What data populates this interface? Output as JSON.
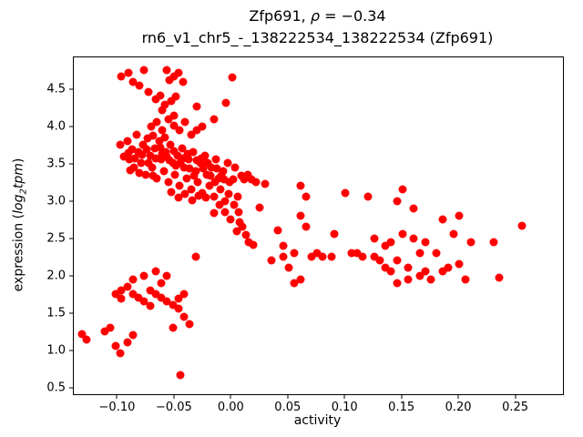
{
  "chart_data": {
    "type": "scatter",
    "title": "Zfp691, ρ = −0.34",
    "title_parts": {
      "prefix": "Zfp691, ",
      "rho": "ρ",
      "rest": " = −0.34"
    },
    "subtitle": "rn6_v1_chr5_-_138222534_138222534 (Zfp691)",
    "xlabel": "activity",
    "ylabel": "expression (log2 tpm)",
    "ylabel_parts": {
      "prefix": "expression (",
      "math_word": "log",
      "math_sub": "2",
      "math_rest": "tpm",
      "suffix": ")"
    },
    "legend": "none",
    "grid": false,
    "marker_color": "#ff0000",
    "marker_size_px": 9,
    "xlim": [
      -0.138,
      0.292
    ],
    "ylim": [
      0.42,
      4.93
    ],
    "xticks": [
      {
        "label": "−0.10",
        "value": -0.1
      },
      {
        "label": "−0.05",
        "value": -0.05
      },
      {
        "label": "0.00",
        "value": 0.0
      },
      {
        "label": "0.05",
        "value": 0.05
      },
      {
        "label": "0.10",
        "value": 0.1
      },
      {
        "label": "0.15",
        "value": 0.15
      },
      {
        "label": "0.20",
        "value": 0.2
      },
      {
        "label": "0.25",
        "value": 0.25
      }
    ],
    "yticks": [
      {
        "label": "0.5",
        "value": 0.5
      },
      {
        "label": "1.0",
        "value": 1.0
      },
      {
        "label": "1.5",
        "value": 1.5
      },
      {
        "label": "2.0",
        "value": 2.0
      },
      {
        "label": "2.5",
        "value": 2.5
      },
      {
        "label": "3.0",
        "value": 3.0
      },
      {
        "label": "3.5",
        "value": 3.5
      },
      {
        "label": "4.0",
        "value": 4.0
      },
      {
        "label": "4.5",
        "value": 4.5
      }
    ],
    "points": [
      [
        -0.096,
        4.67
      ],
      [
        -0.09,
        4.72
      ],
      [
        -0.086,
        4.6
      ],
      [
        -0.08,
        4.55
      ],
      [
        -0.076,
        4.76
      ],
      [
        -0.072,
        4.47
      ],
      [
        -0.066,
        4.37
      ],
      [
        -0.062,
        4.42
      ],
      [
        -0.058,
        4.3
      ],
      [
        -0.054,
        4.62
      ],
      [
        -0.05,
        4.67
      ],
      [
        -0.046,
        4.72
      ],
      [
        -0.056,
        4.76
      ],
      [
        -0.06,
        4.22
      ],
      [
        -0.042,
        4.6
      ],
      [
        -0.03,
        4.27
      ],
      [
        -0.004,
        4.32
      ],
      [
        0.001,
        4.66
      ],
      [
        -0.048,
        4.4
      ],
      [
        -0.052,
        4.35
      ],
      [
        -0.07,
        4.0
      ],
      [
        -0.065,
        4.06
      ],
      [
        -0.06,
        3.95
      ],
      [
        -0.055,
        4.1
      ],
      [
        -0.05,
        4.01
      ],
      [
        -0.045,
        3.96
      ],
      [
        -0.04,
        4.06
      ],
      [
        -0.035,
        3.9
      ],
      [
        -0.05,
        4.15
      ],
      [
        -0.03,
        3.95
      ],
      [
        -0.025,
        4.0
      ],
      [
        -0.015,
        4.1
      ],
      [
        -0.068,
        3.88
      ],
      [
        -0.058,
        3.86
      ],
      [
        -0.097,
        3.76
      ],
      [
        -0.094,
        3.6
      ],
      [
        -0.091,
        3.81
      ],
      [
        -0.089,
        3.56
      ],
      [
        -0.087,
        3.7
      ],
      [
        -0.085,
        3.46
      ],
      [
        -0.083,
        3.9
      ],
      [
        -0.081,
        3.66
      ],
      [
        -0.079,
        3.51
      ],
      [
        -0.077,
        3.76
      ],
      [
        -0.075,
        3.36
      ],
      [
        -0.073,
        3.85
      ],
      [
        -0.071,
        3.61
      ],
      [
        -0.069,
        3.46
      ],
      [
        -0.067,
        3.71
      ],
      [
        -0.065,
        3.31
      ],
      [
        -0.063,
        3.81
      ],
      [
        -0.061,
        3.56
      ],
      [
        -0.059,
        3.41
      ],
      [
        -0.057,
        3.66
      ],
      [
        -0.055,
        3.26
      ],
      [
        -0.053,
        3.76
      ],
      [
        -0.051,
        3.51
      ],
      [
        -0.049,
        3.36
      ],
      [
        -0.047,
        3.61
      ],
      [
        -0.045,
        3.21
      ],
      [
        -0.043,
        3.71
      ],
      [
        -0.041,
        3.46
      ],
      [
        -0.039,
        3.31
      ],
      [
        -0.037,
        3.56
      ],
      [
        -0.035,
        3.16
      ],
      [
        -0.033,
        3.66
      ],
      [
        -0.031,
        3.41
      ],
      [
        -0.029,
        3.26
      ],
      [
        -0.027,
        3.51
      ],
      [
        -0.025,
        3.11
      ],
      [
        -0.023,
        3.61
      ],
      [
        -0.021,
        3.36
      ],
      [
        -0.019,
        3.21
      ],
      [
        -0.017,
        3.46
      ],
      [
        -0.015,
        3.06
      ],
      [
        -0.013,
        3.56
      ],
      [
        -0.011,
        3.31
      ],
      [
        -0.009,
        3.16
      ],
      [
        -0.007,
        3.41
      ],
      [
        -0.005,
        3.01
      ],
      [
        -0.003,
        3.51
      ],
      [
        -0.001,
        3.26
      ],
      [
        -0.09,
        3.65
      ],
      [
        -0.084,
        3.58
      ],
      [
        -0.078,
        3.62
      ],
      [
        -0.072,
        3.52
      ],
      [
        -0.066,
        3.58
      ],
      [
        -0.06,
        3.64
      ],
      [
        -0.054,
        3.55
      ],
      [
        -0.048,
        3.48
      ],
      [
        -0.042,
        3.58
      ],
      [
        -0.036,
        3.44
      ],
      [
        -0.03,
        3.55
      ],
      [
        -0.024,
        3.44
      ],
      [
        -0.018,
        3.35
      ],
      [
        -0.012,
        3.44
      ],
      [
        -0.006,
        3.3
      ],
      [
        -0.088,
        3.42
      ],
      [
        -0.08,
        3.38
      ],
      [
        -0.074,
        3.7
      ],
      [
        -0.068,
        3.35
      ],
      [
        -0.062,
        3.72
      ],
      [
        -0.056,
        3.6
      ],
      [
        -0.05,
        3.68
      ],
      [
        -0.044,
        3.52
      ],
      [
        -0.038,
        3.64
      ],
      [
        -0.032,
        3.34
      ],
      [
        -0.026,
        3.58
      ],
      [
        -0.02,
        3.52
      ],
      [
        -0.014,
        3.26
      ],
      [
        -0.008,
        3.34
      ],
      [
        -0.002,
        3.1
      ],
      [
        -0.046,
        3.05
      ],
      [
        -0.04,
        3.1
      ],
      [
        -0.034,
        3.02
      ],
      [
        -0.028,
        3.08
      ],
      [
        -0.022,
        3.05
      ],
      [
        -0.052,
        3.12
      ],
      [
        0.002,
        3.3
      ],
      [
        0.004,
        3.46
      ],
      [
        0.006,
        3.06
      ],
      [
        0.009,
        3.34
      ],
      [
        0.012,
        3.3
      ],
      [
        0.015,
        3.36
      ],
      [
        0.018,
        3.3
      ],
      [
        0.022,
        3.26
      ],
      [
        0.003,
        2.96
      ],
      [
        0.007,
        2.86
      ],
      [
        -0.01,
        2.95
      ],
      [
        -0.005,
        2.86
      ],
      [
        0.0,
        2.76
      ],
      [
        0.005,
        2.6
      ],
      [
        0.01,
        2.66
      ],
      [
        0.013,
        2.55
      ],
      [
        0.016,
        2.46
      ],
      [
        0.02,
        2.42
      ],
      [
        0.025,
        2.92
      ],
      [
        0.03,
        3.24
      ],
      [
        0.008,
        2.72
      ],
      [
        -0.015,
        2.85
      ],
      [
        -0.131,
        1.22
      ],
      [
        -0.127,
        1.15
      ],
      [
        -0.106,
        1.31
      ],
      [
        -0.101,
        1.06
      ],
      [
        -0.097,
        0.97
      ],
      [
        -0.101,
        1.76
      ],
      [
        -0.096,
        1.81
      ],
      [
        -0.091,
        1.86
      ],
      [
        -0.086,
        1.76
      ],
      [
        -0.081,
        1.71
      ],
      [
        -0.076,
        1.66
      ],
      [
        -0.071,
        1.81
      ],
      [
        -0.066,
        1.76
      ],
      [
        -0.061,
        1.71
      ],
      [
        -0.056,
        1.66
      ],
      [
        -0.051,
        1.61
      ],
      [
        -0.061,
        1.91
      ],
      [
        -0.056,
        2.01
      ],
      [
        -0.046,
        1.56
      ],
      [
        -0.041,
        1.46
      ],
      [
        -0.036,
        1.36
      ],
      [
        -0.051,
        1.31
      ],
      [
        -0.086,
        1.21
      ],
      [
        -0.091,
        1.11
      ],
      [
        -0.044,
        0.68
      ],
      [
        -0.031,
        2.26
      ],
      [
        -0.066,
        2.06
      ],
      [
        -0.076,
        2.01
      ],
      [
        -0.086,
        1.95
      ],
      [
        -0.096,
        1.7
      ],
      [
        -0.071,
        1.6
      ],
      [
        -0.046,
        1.7
      ],
      [
        -0.041,
        1.76
      ],
      [
        -0.111,
        1.26
      ],
      [
        0.036,
        2.21
      ],
      [
        0.041,
        2.61
      ],
      [
        0.046,
        2.26
      ],
      [
        0.051,
        2.11
      ],
      [
        0.056,
        1.91
      ],
      [
        0.061,
        1.96
      ],
      [
        0.061,
        2.81
      ],
      [
        0.066,
        2.66
      ],
      [
        0.071,
        2.26
      ],
      [
        0.076,
        2.31
      ],
      [
        0.081,
        2.26
      ],
      [
        0.091,
        2.56
      ],
      [
        0.061,
        3.21
      ],
      [
        0.066,
        3.06
      ],
      [
        0.056,
        2.31
      ],
      [
        0.046,
        2.41
      ],
      [
        0.089,
        2.26
      ],
      [
        0.101,
        3.11
      ],
      [
        0.106,
        2.31
      ],
      [
        0.111,
        2.31
      ],
      [
        0.121,
        3.06
      ],
      [
        0.126,
        2.51
      ],
      [
        0.131,
        2.21
      ],
      [
        0.136,
        2.11
      ],
      [
        0.141,
        2.06
      ],
      [
        0.141,
        2.46
      ],
      [
        0.146,
        3.01
      ],
      [
        0.146,
        2.21
      ],
      [
        0.151,
        3.16
      ],
      [
        0.151,
        2.56
      ],
      [
        0.156,
        2.11
      ],
      [
        0.161,
        2.51
      ],
      [
        0.166,
        2.01
      ],
      [
        0.171,
        2.46
      ],
      [
        0.176,
        1.96
      ],
      [
        0.181,
        2.31
      ],
      [
        0.186,
        2.76
      ],
      [
        0.191,
        2.11
      ],
      [
        0.196,
        2.56
      ],
      [
        0.201,
        2.81
      ],
      [
        0.201,
        2.16
      ],
      [
        0.206,
        1.96
      ],
      [
        0.211,
        2.46
      ],
      [
        0.231,
        2.46
      ],
      [
        0.236,
        1.98
      ],
      [
        0.256,
        2.68
      ],
      [
        0.161,
        2.91
      ],
      [
        0.156,
        1.96
      ],
      [
        0.146,
        1.91
      ],
      [
        0.116,
        2.26
      ],
      [
        0.126,
        2.26
      ],
      [
        0.136,
        2.41
      ],
      [
        0.166,
        2.31
      ],
      [
        0.171,
        2.06
      ],
      [
        0.186,
        2.06
      ]
    ]
  }
}
